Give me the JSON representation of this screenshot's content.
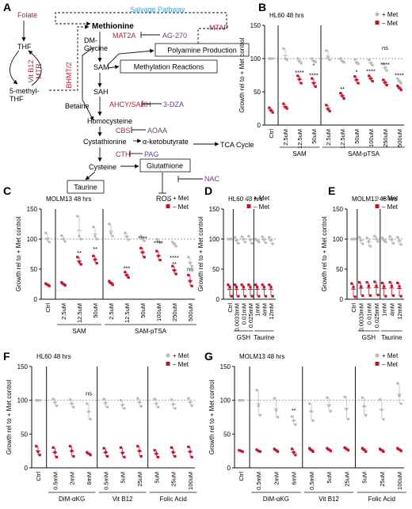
{
  "colors": {
    "plus_met": "#b9b9b9",
    "minus_met": "#c0142c",
    "enzyme": "#b41f3b",
    "inhibitor": "#6a3d8f",
    "salvage": "#3aa4d8",
    "axis": "#111111",
    "ref_line": "#777777"
  },
  "pathway": {
    "panel_letter": "A",
    "nodes": {
      "folate": "Folate",
      "thf": "THF",
      "methyl_thf": "5-methyl-\nTHF",
      "methionine": "Methionine",
      "dm_glycine": "DM-\nGlycine",
      "sam": "SAM",
      "sah": "SAH",
      "betaine": "Betaine",
      "homocysteine": "Homocysteine",
      "cystathionine": "Cystathionine",
      "akb": "α-ketobutyrate",
      "tca": "TCA Cycle",
      "cysteine": "Cysteine",
      "glutathione": "Glutathione",
      "taurine": "Taurine",
      "ros": "ROS",
      "polyamine": "Polyamine Production",
      "methylation": "Methylation Reactions"
    },
    "salvage_label": "Salvage Pathway",
    "enzymes": {
      "vitb12": "Vit B12",
      "mtr": "MTR",
      "bhmt": "BHMT/2",
      "mat2a": "MAT2A",
      "mtap": "MTAP",
      "ahcy": "AHCY/SAHH",
      "cbs": "CBS",
      "cth": "CTH"
    },
    "inhibitors": {
      "ag270": "AG-270",
      "dza": "3-DZA",
      "aoaa": "AOAA",
      "pag": "PAG",
      "nac": "NAC"
    }
  },
  "chart_data": [
    {
      "id": "B",
      "panel_letter": "B",
      "type": "scatter",
      "title": "HL60 48 hrs",
      "ylabel": "Growth rel to + Met control",
      "ylim": [
        0,
        150
      ],
      "yticks": [
        0,
        50,
        100,
        150
      ],
      "ref_line": 100,
      "legend": {
        "plus": "+ Met",
        "minus": "– Met"
      },
      "categories": [
        "Ctrl",
        "2.5uM",
        "12.5uM",
        "50uM",
        "2.5uM",
        "12.5uM",
        "50uM",
        "100uM",
        "250uM",
        "500uM"
      ],
      "groups": [
        {
          "label": "SAM",
          "start": 1,
          "end": 3
        },
        {
          "label": "SAM-pTSA",
          "start": 4,
          "end": 9
        }
      ],
      "series": [
        {
          "name": "+ Met",
          "values": [
            [
              100,
              100,
              100
            ],
            [
              115,
              100,
              98
            ],
            [
              100,
              96,
              93
            ],
            [
              100,
              96,
              95
            ],
            [
              112,
              101,
              98
            ],
            [
              100,
              96,
              94
            ],
            [
              99,
              94,
              92
            ],
            [
              98,
              93,
              90
            ],
            [
              92,
              86,
              82
            ],
            [
              70,
              66,
              63
            ]
          ]
        },
        {
          "name": "– Met",
          "values": [
            [
              26,
              22,
              19
            ],
            [
              32,
              27,
              25
            ],
            [
              74,
              69,
              63
            ],
            [
              70,
              63,
              58
            ],
            [
              30,
              24,
              21
            ],
            [
              48,
              44,
              40
            ],
            [
              73,
              68,
              63
            ],
            [
              74,
              70,
              66
            ],
            [
              68,
              64,
              60
            ],
            [
              59,
              56,
              53
            ]
          ]
        }
      ],
      "annotations": [
        {
          "x": 2,
          "text": "****",
          "y": 76
        },
        {
          "x": 3,
          "text": "****",
          "y": 72
        },
        {
          "x": 3,
          "text": "*",
          "y": 87
        },
        {
          "x": 5,
          "text": "**",
          "y": 51
        },
        {
          "x": 6,
          "text": "*",
          "y": 77
        },
        {
          "x": 7,
          "text": "****",
          "y": 78
        },
        {
          "x": 8,
          "text": "****",
          "y": 88
        },
        {
          "x": 9,
          "text": "****",
          "y": 72
        },
        {
          "x": 8,
          "text": "ns",
          "y": 113
        }
      ]
    },
    {
      "id": "C",
      "panel_letter": "C",
      "type": "scatter",
      "title": "MOLM13 48 hrs",
      "ylabel": "Growth rel to + Met control",
      "ylim": [
        0,
        150
      ],
      "yticks": [
        0,
        50,
        100,
        150
      ],
      "ref_line": 100,
      "legend": {
        "plus": "+ Met",
        "minus": "– Met"
      },
      "categories": [
        "Ctrl",
        "2.5uM",
        "12.5uM",
        "50uM",
        "2.5uM",
        "12.5uM",
        "50uM",
        "100uM",
        "250uM",
        "500uM"
      ],
      "groups": [
        {
          "label": "SAM",
          "start": 1,
          "end": 3
        },
        {
          "label": "SAM-pTSA",
          "start": 4,
          "end": 9
        }
      ],
      "series": [
        {
          "name": "+ Met",
          "values": [
            [
              110,
              100,
              95
            ],
            [
              106,
              100,
              96
            ],
            [
              138,
              105,
              100
            ],
            [
              120,
              105,
              100
            ],
            [
              125,
              110,
              105
            ],
            [
              110,
              104,
              99
            ],
            [
              105,
              100,
              97
            ],
            [
              100,
              96,
              94
            ],
            [
              95,
              92,
              88
            ],
            [
              70,
              60,
              55
            ]
          ]
        },
        {
          "name": "– Met",
          "values": [
            [
              26,
              24,
              22
            ],
            [
              28,
              25,
              23
            ],
            [
              70,
              62,
              58
            ],
            [
              72,
              66,
              60
            ],
            [
              30,
              27,
              24
            ],
            [
              45,
              40,
              36
            ],
            [
              85,
              78,
              70
            ],
            [
              80,
              72,
              65
            ],
            [
              55,
              48,
              42
            ],
            [
              40,
              30,
              22
            ]
          ]
        }
      ],
      "annotations": [
        {
          "x": 2,
          "text": "**",
          "y": 74
        },
        {
          "x": 3,
          "text": "**",
          "y": 80
        },
        {
          "x": 5,
          "text": "***",
          "y": 48
        },
        {
          "x": 6,
          "text": "****",
          "y": 98
        },
        {
          "x": 7,
          "text": "****",
          "y": 90
        },
        {
          "x": 8,
          "text": "****",
          "y": 66
        },
        {
          "x": 8,
          "text": "**",
          "y": 55
        },
        {
          "x": 9,
          "text": "ns",
          "y": 47
        }
      ]
    },
    {
      "id": "D",
      "panel_letter": "D",
      "type": "scatter",
      "title": "HL60 48 hrs",
      "ylabel": "Growth rel to + Met control",
      "ylim": [
        0,
        150
      ],
      "yticks": [
        0,
        50,
        100,
        150
      ],
      "ref_line": 100,
      "legend": {
        "plus": "+ Met",
        "minus": "– Met"
      },
      "categories": [
        "Ctrl",
        "0.0033mM",
        "0.01mM",
        "0.025mM",
        "1mM",
        "4mM",
        "12mM"
      ],
      "groups": [
        {
          "label": "GSH",
          "start": 1,
          "end": 3
        },
        {
          "label": "Taurine",
          "start": 4,
          "end": 6
        }
      ],
      "series": [
        {
          "name": "+ Met",
          "values": [
            [
              100,
              100,
              100
            ],
            [
              103,
              98,
              93
            ],
            [
              104,
              100,
              95
            ],
            [
              105,
              99,
              93
            ],
            [
              100,
              98,
              95
            ],
            [
              104,
              99,
              94
            ],
            [
              103,
              98,
              92
            ]
          ]
        },
        {
          "name": "– Met",
          "values": [
            [
              24,
              20,
              5
            ],
            [
              24,
              20,
              5
            ],
            [
              24,
              20,
              5
            ],
            [
              24,
              20,
              5
            ],
            [
              24,
              20,
              5
            ],
            [
              24,
              20,
              5
            ],
            [
              24,
              20,
              5
            ]
          ]
        }
      ],
      "annotations": []
    },
    {
      "id": "E",
      "panel_letter": "E",
      "type": "scatter",
      "title": "MOLM13 48 hrs",
      "ylabel": "Growth rel to + Met control",
      "ylim": [
        0,
        150
      ],
      "yticks": [
        0,
        50,
        100,
        150
      ],
      "ref_line": 100,
      "legend": {
        "plus": "+ Met",
        "minus": "– Met"
      },
      "categories": [
        "Ctrl",
        "0.0033mM",
        "0.01mM",
        "0.025mM",
        "1mM",
        "4mM",
        "12mM"
      ],
      "groups": [
        {
          "label": "GSH",
          "start": 1,
          "end": 3
        },
        {
          "label": "Taurine",
          "start": 4,
          "end": 6
        }
      ],
      "series": [
        {
          "name": "+ Met",
          "values": [
            [
              100,
              100,
              100
            ],
            [
              103,
              98,
              92
            ],
            [
              102,
              96,
              88
            ],
            [
              105,
              100,
              96
            ],
            [
              102,
              98,
              95
            ],
            [
              104,
              99,
              93
            ],
            [
              103,
              97,
              91
            ]
          ]
        },
        {
          "name": "– Met",
          "values": [
            [
              26,
              20,
              4
            ],
            [
              28,
              21,
              6
            ],
            [
              28,
              22,
              6
            ],
            [
              29,
              22,
              7
            ],
            [
              27,
              21,
              5
            ],
            [
              28,
              22,
              6
            ],
            [
              27,
              21,
              5
            ]
          ]
        }
      ],
      "annotations": []
    },
    {
      "id": "F",
      "panel_letter": "F",
      "type": "scatter",
      "title": "HL60 48 hrs",
      "ylabel": "Growth rel to + Met control",
      "ylim": [
        0,
        150
      ],
      "yticks": [
        0,
        50,
        100,
        150
      ],
      "ref_line": 100,
      "legend": {
        "plus": "+ Met",
        "minus": "– Met"
      },
      "categories": [
        "Ctrl",
        "0.5mM",
        "2mM",
        "6mM",
        "0.5mM",
        "5uM",
        "25uM",
        "5uM",
        "25uM",
        "100uM"
      ],
      "groups": [
        {
          "label": "DiM-αKG",
          "start": 1,
          "end": 3
        },
        {
          "label": "Vit B12",
          "start": 4,
          "end": 6
        },
        {
          "label": "Folic Acid",
          "start": 7,
          "end": 9
        }
      ],
      "series": [
        {
          "name": "+ Met",
          "values": [
            [
              100,
              100,
              100
            ],
            [
              102,
              97,
              92
            ],
            [
              101,
              95,
              90
            ],
            [
              95,
              83,
              72
            ],
            [
              102,
              96,
              90
            ],
            [
              100,
              93,
              88
            ],
            [
              103,
              97,
              91
            ],
            [
              102,
              95,
              90
            ],
            [
              101,
              94,
              88
            ],
            [
              103,
              97,
              92
            ]
          ]
        },
        {
          "name": "– Met",
          "values": [
            [
              32,
              24,
              19
            ],
            [
              30,
              23,
              16
            ],
            [
              32,
              25,
              17
            ],
            [
              23,
              21,
              19
            ],
            [
              29,
              23,
              17
            ],
            [
              30,
              22,
              16
            ],
            [
              32,
              25,
              17
            ],
            [
              26,
              21,
              16
            ],
            [
              30,
              23,
              17
            ],
            [
              31,
              24,
              16
            ]
          ]
        }
      ],
      "annotations": [
        {
          "x": 3,
          "text": "ns",
          "y": 107
        }
      ]
    },
    {
      "id": "G",
      "panel_letter": "G",
      "type": "scatter",
      "title": "MOLM13 48 hrs",
      "ylabel": "Growth rel to + Met control",
      "ylim": [
        0,
        150
      ],
      "yticks": [
        0,
        50,
        100,
        150
      ],
      "ref_line": 100,
      "legend": {
        "plus": "+ Met",
        "minus": "– Met"
      },
      "categories": [
        "Ctrl",
        "0.5mM",
        "2mM",
        "6mM",
        "0.5mM",
        "5uM",
        "25uM",
        "5uM",
        "25uM",
        "100uM"
      ],
      "groups": [
        {
          "label": "DiM-αKG",
          "start": 1,
          "end": 3
        },
        {
          "label": "Vit B12",
          "start": 4,
          "end": 6
        },
        {
          "label": "Folic Acid",
          "start": 7,
          "end": 9
        }
      ],
      "series": [
        {
          "name": "+ Met",
          "values": [
            [
              100,
              100,
              100
            ],
            [
              115,
              92,
              78
            ],
            [
              103,
              85,
              75
            ],
            [
              76,
              70,
              64
            ],
            [
              95,
              84,
              70
            ],
            [
              104,
              92,
              84
            ],
            [
              105,
              87,
              72
            ],
            [
              104,
              91,
              78
            ],
            [
              101,
              86,
              72
            ],
            [
              125,
              107,
              95
            ]
          ]
        },
        {
          "name": "– Met",
          "values": [
            [
              26,
              25,
              24
            ],
            [
              27,
              25,
              24
            ],
            [
              28,
              26,
              24
            ],
            [
              28,
              23,
              19
            ],
            [
              29,
              26,
              24
            ],
            [
              29,
              27,
              25
            ],
            [
              30,
              28,
              26
            ],
            [
              29,
              27,
              24
            ],
            [
              28,
              26,
              24
            ],
            [
              29,
              27,
              25
            ]
          ]
        }
      ],
      "annotations": [
        {
          "x": 3,
          "text": "**",
          "y": 82
        }
      ]
    }
  ]
}
